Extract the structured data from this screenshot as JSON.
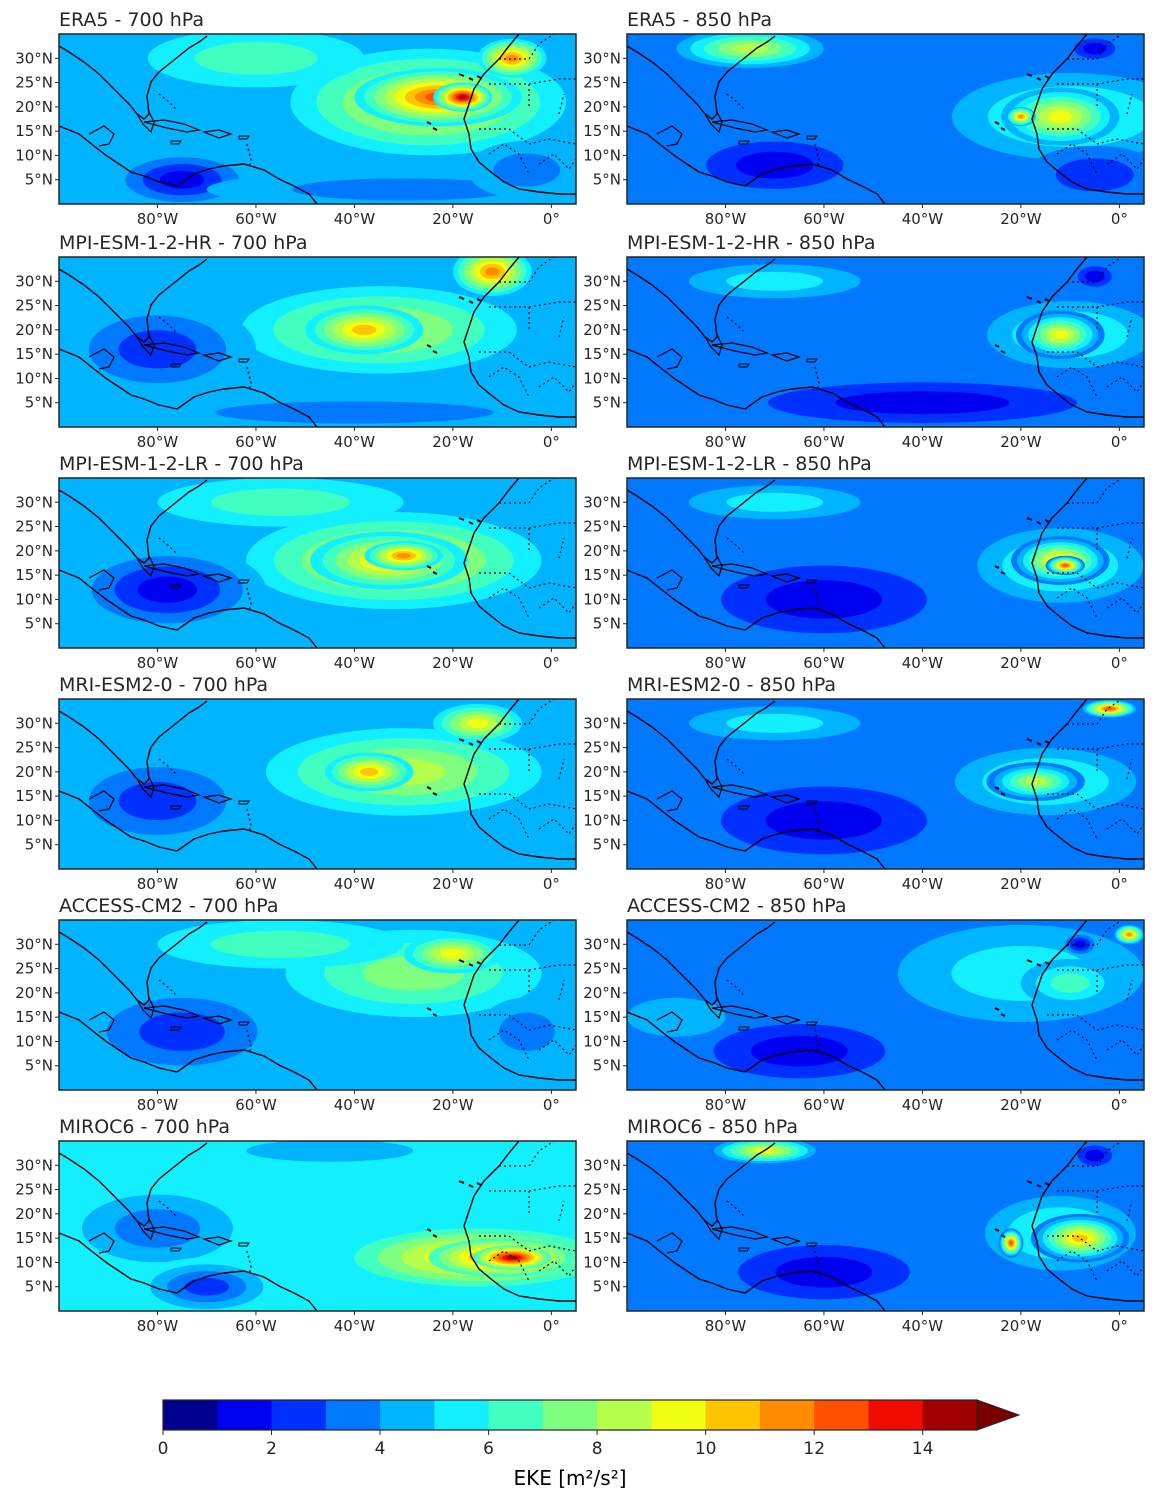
{
  "chart_data": {
    "type": "filled-contour-map-grid",
    "colorbar": {
      "label": "EKE [m²/s²]",
      "levels": [
        0,
        1,
        2,
        3,
        4,
        5,
        6,
        7,
        8,
        9,
        10,
        11,
        12,
        13,
        14,
        15
      ],
      "tick_values": [
        0,
        2,
        4,
        6,
        8,
        10,
        12,
        14
      ],
      "tick_labels": [
        "0",
        "2",
        "4",
        "6",
        "8",
        "10",
        "12",
        "14"
      ],
      "extend": "max",
      "colors": [
        "#00008f",
        "#0000f0",
        "#0030ff",
        "#0078ff",
        "#00b4ff",
        "#12f0ff",
        "#40ffbf",
        "#7fff80",
        "#b4ff4b",
        "#f0ff10",
        "#ffc400",
        "#ff8c00",
        "#ff5000",
        "#f00d00",
        "#a00000",
        "#7a0000"
      ]
    },
    "map_extent": {
      "lon": [
        -100,
        5
      ],
      "lat": [
        0,
        35
      ]
    },
    "lon_ticks": {
      "values": [
        -80,
        -60,
        -40,
        -20,
        0
      ],
      "labels": [
        "80°W",
        "60°W",
        "40°W",
        "20°W",
        "0°"
      ]
    },
    "lat_ticks": {
      "values": [
        5,
        10,
        15,
        20,
        25,
        30
      ],
      "labels": [
        "5°N",
        "10°N",
        "15°N",
        "20°N",
        "25°N",
        "30°N"
      ]
    },
    "panels": [
      {
        "title": "ERA5 - 700 hPa",
        "field": "EKE",
        "level_hPa": 700,
        "background_level": 4.5,
        "features": [
          {
            "lon": -25,
            "lat": 21,
            "rx": 28,
            "ry": 11,
            "value": 9
          },
          {
            "lon": -23,
            "lat": 22,
            "rx": 17,
            "ry": 6,
            "value": 12
          },
          {
            "lon": -18,
            "lat": 22,
            "rx": 6,
            "ry": 3,
            "value": 14
          },
          {
            "lon": -8,
            "lat": 30,
            "rx": 7,
            "ry": 4,
            "value": 11
          },
          {
            "lon": -60,
            "lat": 30,
            "rx": 22,
            "ry": 6,
            "value": 6
          },
          {
            "lon": -75,
            "lat": 5,
            "rx": 15,
            "ry": 6,
            "value": 1
          },
          {
            "lon": -30,
            "lat": 3,
            "rx": 40,
            "ry": 4,
            "value": 3
          },
          {
            "lon": -5,
            "lat": 7,
            "rx": 12,
            "ry": 6,
            "value": 3
          }
        ]
      },
      {
        "title": "ERA5 - 850 hPa",
        "field": "EKE",
        "level_hPa": 850,
        "background_level": 3.5,
        "features": [
          {
            "lon": -10,
            "lat": 18,
            "rx": 24,
            "ry": 9,
            "value": 6
          },
          {
            "lon": -12,
            "lat": 18,
            "rx": 12,
            "ry": 6,
            "value": 9
          },
          {
            "lon": -20,
            "lat": 18,
            "rx": 3,
            "ry": 2,
            "value": 11
          },
          {
            "lon": -5,
            "lat": 32,
            "rx": 6,
            "ry": 3,
            "value": 1
          },
          {
            "lon": -75,
            "lat": 32,
            "rx": 15,
            "ry": 4,
            "value": 8
          },
          {
            "lon": -70,
            "lat": 8,
            "rx": 20,
            "ry": 7,
            "value": 1
          },
          {
            "lon": -5,
            "lat": 6,
            "rx": 14,
            "ry": 6,
            "value": 2
          }
        ]
      },
      {
        "title": "MPI-ESM-1-2-HR - 700 hPa",
        "field": "EKE",
        "level_hPa": 700,
        "background_level": 4.5,
        "features": [
          {
            "lon": -35,
            "lat": 20,
            "rx": 28,
            "ry": 9,
            "value": 8
          },
          {
            "lon": -38,
            "lat": 20,
            "rx": 12,
            "ry": 5,
            "value": 10
          },
          {
            "lon": -12,
            "lat": 32,
            "rx": 8,
            "ry": 5,
            "value": 11
          },
          {
            "lon": -80,
            "lat": 16,
            "rx": 20,
            "ry": 10,
            "value": 2
          },
          {
            "lon": -40,
            "lat": 3,
            "rx": 50,
            "ry": 4,
            "value": 3
          }
        ]
      },
      {
        "title": "MPI-ESM-1-2-HR - 850 hPa",
        "field": "EKE",
        "level_hPa": 850,
        "background_level": 3.0,
        "features": [
          {
            "lon": -10,
            "lat": 19,
            "rx": 22,
            "ry": 9,
            "value": 6
          },
          {
            "lon": -12,
            "lat": 19,
            "rx": 9,
            "ry": 5,
            "value": 9
          },
          {
            "lon": -5,
            "lat": 31,
            "rx": 5,
            "ry": 3,
            "value": 1
          },
          {
            "lon": -40,
            "lat": 5,
            "rx": 45,
            "ry": 6,
            "value": 1
          },
          {
            "lon": -70,
            "lat": 30,
            "rx": 25,
            "ry": 5,
            "value": 5
          }
        ]
      },
      {
        "title": "MPI-ESM-1-2-LR - 700 hPa",
        "field": "EKE",
        "level_hPa": 700,
        "background_level": 4.5,
        "features": [
          {
            "lon": -32,
            "lat": 18,
            "rx": 30,
            "ry": 10,
            "value": 9
          },
          {
            "lon": -33,
            "lat": 18,
            "rx": 16,
            "ry": 6,
            "value": 10
          },
          {
            "lon": -30,
            "lat": 19,
            "rx": 8,
            "ry": 3,
            "value": 11
          },
          {
            "lon": -78,
            "lat": 12,
            "rx": 20,
            "ry": 9,
            "value": 1
          },
          {
            "lon": -55,
            "lat": 30,
            "rx": 25,
            "ry": 5,
            "value": 6
          }
        ]
      },
      {
        "title": "MPI-ESM-1-2-LR - 850 hPa",
        "field": "EKE",
        "level_hPa": 850,
        "background_level": 3.0,
        "features": [
          {
            "lon": -12,
            "lat": 17,
            "rx": 22,
            "ry": 10,
            "value": 6
          },
          {
            "lon": -12,
            "lat": 18,
            "rx": 10,
            "ry": 5,
            "value": 10
          },
          {
            "lon": -11,
            "lat": 17,
            "rx": 4,
            "ry": 2,
            "value": 12
          },
          {
            "lon": -60,
            "lat": 10,
            "rx": 30,
            "ry": 10,
            "value": 1
          },
          {
            "lon": -70,
            "lat": 30,
            "rx": 25,
            "ry": 5,
            "value": 5
          }
        ]
      },
      {
        "title": "MRI-ESM2-0 - 700 hPa",
        "field": "EKE",
        "level_hPa": 700,
        "background_level": 4.5,
        "features": [
          {
            "lon": -30,
            "lat": 20,
            "rx": 28,
            "ry": 9,
            "value": 8
          },
          {
            "lon": -37,
            "lat": 20,
            "rx": 9,
            "ry": 4,
            "value": 10
          },
          {
            "lon": -15,
            "lat": 30,
            "rx": 9,
            "ry": 4,
            "value": 9
          },
          {
            "lon": -80,
            "lat": 14,
            "rx": 20,
            "ry": 10,
            "value": 2
          },
          {
            "lon": -30,
            "lat": 4,
            "rx": 45,
            "ry": 5,
            "value": 4
          }
        ]
      },
      {
        "title": "MRI-ESM2-0 - 850 hPa",
        "field": "EKE",
        "level_hPa": 850,
        "background_level": 3.0,
        "features": [
          {
            "lon": -15,
            "lat": 18,
            "rx": 24,
            "ry": 9,
            "value": 6
          },
          {
            "lon": -17,
            "lat": 18,
            "rx": 10,
            "ry": 4,
            "value": 8
          },
          {
            "lon": -2,
            "lat": 33,
            "rx": 6,
            "ry": 2,
            "value": 12
          },
          {
            "lon": -70,
            "lat": 30,
            "rx": 25,
            "ry": 5,
            "value": 5
          },
          {
            "lon": -60,
            "lat": 10,
            "rx": 30,
            "ry": 10,
            "value": 1
          }
        ]
      },
      {
        "title": "ACCESS-CM2 - 700 hPa",
        "field": "EKE",
        "level_hPa": 700,
        "background_level": 4.5,
        "features": [
          {
            "lon": -28,
            "lat": 24,
            "rx": 26,
            "ry": 9,
            "value": 7
          },
          {
            "lon": -20,
            "lat": 28,
            "rx": 10,
            "ry": 4,
            "value": 9
          },
          {
            "lon": -75,
            "lat": 12,
            "rx": 22,
            "ry": 10,
            "value": 2
          },
          {
            "lon": -5,
            "lat": 12,
            "rx": 10,
            "ry": 7,
            "value": 3
          },
          {
            "lon": -55,
            "lat": 30,
            "rx": 25,
            "ry": 5,
            "value": 6
          }
        ]
      },
      {
        "title": "ACCESS-CM2 - 850 hPa",
        "field": "EKE",
        "level_hPa": 850,
        "background_level": 3.5,
        "features": [
          {
            "lon": -20,
            "lat": 24,
            "rx": 25,
            "ry": 10,
            "value": 5
          },
          {
            "lon": -10,
            "lat": 22,
            "rx": 10,
            "ry": 5,
            "value": 6
          },
          {
            "lon": -8,
            "lat": 30,
            "rx": 3,
            "ry": 2,
            "value": 1
          },
          {
            "lon": 2,
            "lat": 32,
            "rx": 3,
            "ry": 2,
            "value": 11
          },
          {
            "lon": -65,
            "lat": 8,
            "rx": 25,
            "ry": 8,
            "value": 1
          },
          {
            "lon": -90,
            "lat": 15,
            "rx": 10,
            "ry": 4,
            "value": 4
          }
        ]
      },
      {
        "title": "MIROC6 - 700 hPa",
        "field": "EKE",
        "level_hPa": 700,
        "background_level": 5.5,
        "features": [
          {
            "lon": -15,
            "lat": 11,
            "rx": 25,
            "ry": 6,
            "value": 10
          },
          {
            "lon": -10,
            "lat": 11,
            "rx": 15,
            "ry": 4,
            "value": 12
          },
          {
            "lon": -8,
            "lat": 11,
            "rx": 8,
            "ry": 2.5,
            "value": 14
          },
          {
            "lon": -80,
            "lat": 17,
            "rx": 22,
            "ry": 10,
            "value": 3
          },
          {
            "lon": -45,
            "lat": 33,
            "rx": 30,
            "ry": 4,
            "value": 4
          },
          {
            "lon": -70,
            "lat": 5,
            "rx": 15,
            "ry": 6,
            "value": 2
          }
        ]
      },
      {
        "title": "MIROC6 - 850 hPa",
        "field": "EKE",
        "level_hPa": 850,
        "background_level": 3.0,
        "features": [
          {
            "lon": -12,
            "lat": 16,
            "rx": 20,
            "ry": 10,
            "value": 6
          },
          {
            "lon": -8,
            "lat": 15,
            "rx": 10,
            "ry": 5,
            "value": 10
          },
          {
            "lon": -22,
            "lat": 14,
            "rx": 2.5,
            "ry": 3,
            "value": 12
          },
          {
            "lon": -72,
            "lat": 33,
            "rx": 12,
            "ry": 3,
            "value": 9
          },
          {
            "lon": -5,
            "lat": 32,
            "rx": 5,
            "ry": 3,
            "value": 1
          },
          {
            "lon": -60,
            "lat": 8,
            "rx": 25,
            "ry": 8,
            "value": 1
          }
        ]
      }
    ]
  }
}
